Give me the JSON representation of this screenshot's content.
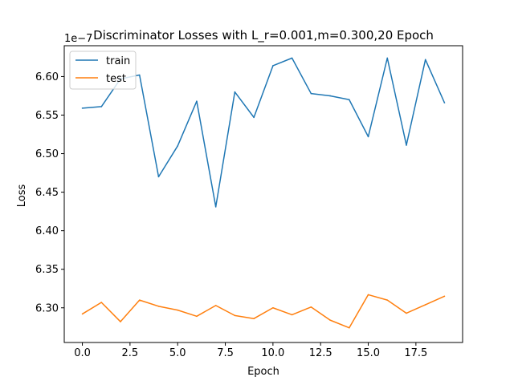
{
  "chart_data": {
    "type": "line",
    "title": "Discriminator Losses with L_r=0.001,m=0.300,20 Epoch",
    "xlabel": "Epoch",
    "ylabel": "Loss",
    "y_offset_label": "1e−7",
    "x": [
      0,
      1,
      2,
      3,
      4,
      5,
      6,
      7,
      8,
      9,
      10,
      11,
      12,
      13,
      14,
      15,
      16,
      17,
      18,
      19
    ],
    "xlim": [
      -0.95,
      19.95
    ],
    "ylim": [
      6.255,
      6.64
    ],
    "x_ticks": [
      0,
      2.5,
      5,
      7.5,
      10,
      12.5,
      15,
      17.5
    ],
    "x_tick_labels": [
      "0.0",
      "2.5",
      "5.0",
      "7.5",
      "10.0",
      "12.5",
      "15.0",
      "17.5"
    ],
    "y_ticks": [
      6.3,
      6.35,
      6.4,
      6.45,
      6.5,
      6.55,
      6.6
    ],
    "y_tick_labels": [
      "6.30",
      "6.35",
      "6.40",
      "6.45",
      "6.50",
      "6.55",
      "6.60"
    ],
    "grid": false,
    "legend_position": "top-left",
    "series": [
      {
        "name": "train",
        "color": "#1f77b4",
        "values": [
          6.559,
          6.561,
          6.597,
          6.602,
          6.47,
          6.51,
          6.568,
          6.431,
          6.58,
          6.547,
          6.614,
          6.624,
          6.578,
          6.575,
          6.57,
          6.522,
          6.624,
          6.511,
          6.622,
          6.566
        ]
      },
      {
        "name": "test",
        "color": "#ff7f0e",
        "values": [
          6.292,
          6.307,
          6.282,
          6.31,
          6.302,
          6.297,
          6.289,
          6.303,
          6.29,
          6.286,
          6.3,
          6.291,
          6.301,
          6.284,
          6.274,
          6.317,
          6.31,
          6.293,
          6.304,
          6.315
        ]
      }
    ]
  }
}
